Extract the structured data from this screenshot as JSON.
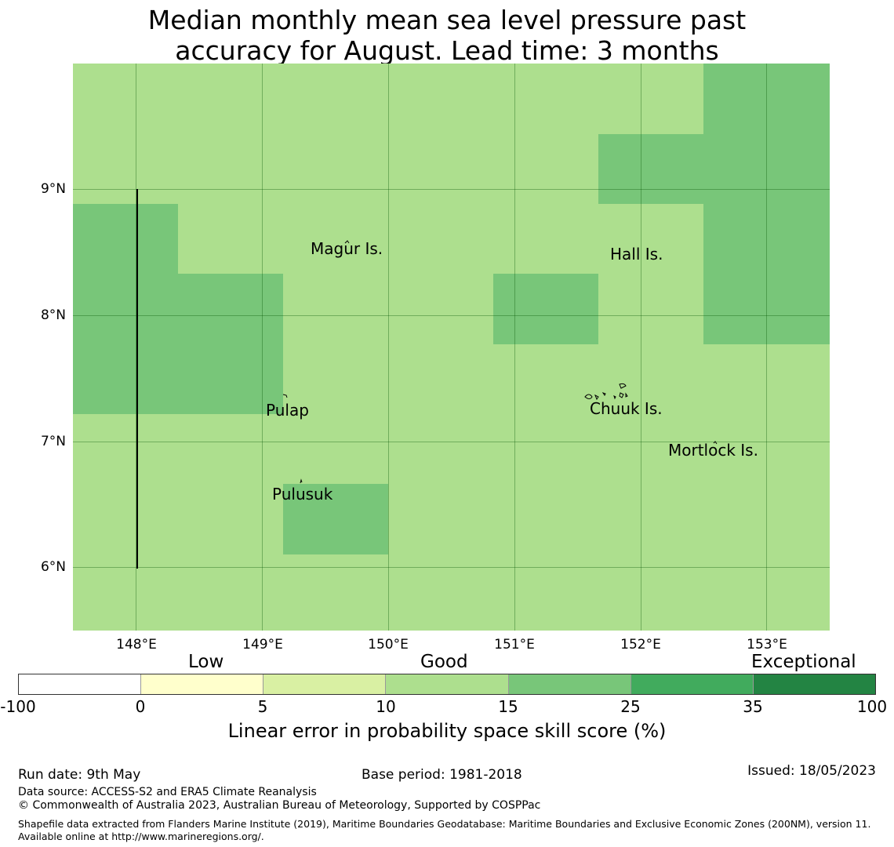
{
  "title_line1": "Median monthly mean sea level pressure past",
  "title_line2": "accuracy for August. Lead time: 3 months",
  "map": {
    "lon_ticks": [
      "148°E",
      "149°E",
      "150°E",
      "151°E",
      "152°E",
      "153°E"
    ],
    "lat_ticks": [
      "9°N",
      "8°N",
      "7°N",
      "6°N"
    ],
    "places": {
      "magur": "Magur Is.",
      "hall": "Hall Is.",
      "pulap": "Pulap",
      "chuuk": "Chuuk Is.",
      "mortlock": "Mortlock Is.",
      "pulusuk": "Pulusuk"
    },
    "colors": {
      "good_low": "#addf8e",
      "good_high": "#78c679"
    }
  },
  "legend": {
    "band_low": "Low",
    "band_good": "Good",
    "band_exceptional": "Exceptional",
    "ticks": [
      "-100",
      "0",
      "5",
      "10",
      "15",
      "25",
      "35",
      "100"
    ],
    "colors": [
      "#ffffff",
      "#ffffcc",
      "#d9f0a3",
      "#addf8e",
      "#78c679",
      "#41ab5d",
      "#238443"
    ],
    "title": "Linear error in probability space skill score (%)"
  },
  "footer": {
    "run_date": "Run date: 9th May",
    "base_period": "Base period: 1981-2018",
    "issued": "Issued: 18/05/2023",
    "data_source": "Data source: ACCESS-S2 and ERA5 Climate Reanalysis",
    "copyright": "© Commonwealth of Australia 2023, Australian Bureau of Meteorology, Supported by COSPPac",
    "shapefile": "Shapefile data extracted from Flanders Marine Institute (2019), Maritime Boundaries Geodatabase: Maritime Boundaries and Exclusive Economic Zones (200NM), version 11. Available online at http://www.marineregions.org/."
  }
}
